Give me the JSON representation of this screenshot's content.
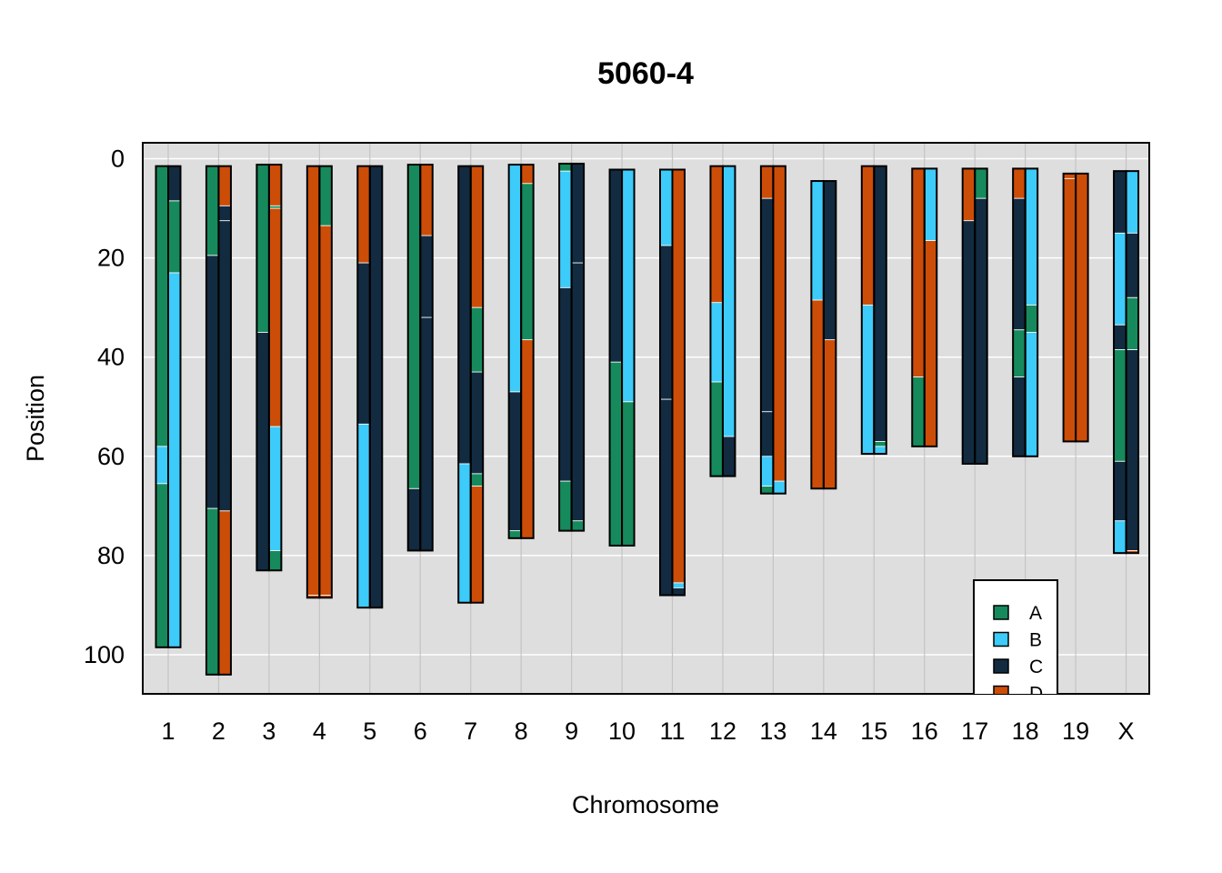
{
  "chart_data": {
    "type": "bar",
    "title": "5060-4",
    "xlabel": "Chromosome",
    "ylabel": "Position",
    "ylim": [
      0,
      108
    ],
    "y_reversed": true,
    "yticks": [
      0,
      20,
      40,
      60,
      80,
      100
    ],
    "grid": true,
    "legend_position": "bottom-right",
    "categories": [
      "1",
      "2",
      "3",
      "4",
      "5",
      "6",
      "7",
      "8",
      "9",
      "10",
      "11",
      "12",
      "13",
      "14",
      "15",
      "16",
      "17",
      "18",
      "19",
      "X"
    ],
    "legend": [
      {
        "key": "A",
        "label": "A",
        "color": "#168A5C"
      },
      {
        "key": "B",
        "label": "B",
        "color": "#3DCBFA"
      },
      {
        "key": "C",
        "label": "C",
        "color": "#122B40"
      },
      {
        "key": "D",
        "label": "D",
        "color": "#CC4D08"
      }
    ],
    "chromosomes": [
      {
        "name": "1",
        "start": 1.5,
        "end": 98.5,
        "left": [
          [
            "A",
            1.5,
            58
          ],
          [
            "B",
            58,
            65.5
          ],
          [
            "A",
            65.5,
            98.5
          ]
        ],
        "right": [
          [
            "C",
            1.5,
            8.5
          ],
          [
            "A",
            8.5,
            23
          ],
          [
            "B",
            23,
            98.5
          ]
        ]
      },
      {
        "name": "2",
        "start": 1.5,
        "end": 104,
        "left": [
          [
            "A",
            1.5,
            19.5
          ],
          [
            "C",
            19.5,
            70.5
          ],
          [
            "A",
            70.5,
            104
          ]
        ],
        "right": [
          [
            "D",
            1.5,
            9.5
          ],
          [
            "C",
            9.5,
            12.5
          ],
          [
            "C",
            12.5,
            71
          ],
          [
            "D",
            71,
            104
          ]
        ]
      },
      {
        "name": "3",
        "start": 1.2,
        "end": 83,
        "left": [
          [
            "A",
            1.2,
            35
          ],
          [
            "C",
            35,
            83
          ]
        ],
        "right": [
          [
            "D",
            1.2,
            9.5
          ],
          [
            "A",
            9.5,
            10
          ],
          [
            "D",
            10,
            54
          ],
          [
            "B",
            54,
            79
          ],
          [
            "A",
            79,
            83
          ]
        ]
      },
      {
        "name": "4",
        "start": 1.5,
        "end": 88.5,
        "left": [
          [
            "D",
            1.5,
            88
          ],
          [
            "D",
            88,
            88.5
          ]
        ],
        "right": [
          [
            "A",
            1.5,
            13.5
          ],
          [
            "D",
            13.5,
            88
          ],
          [
            "D",
            88,
            88.5
          ]
        ]
      },
      {
        "name": "5",
        "start": 1.5,
        "end": 90.5,
        "left": [
          [
            "D",
            1.5,
            21
          ],
          [
            "C",
            21,
            53.5
          ],
          [
            "B",
            53.5,
            90.5
          ]
        ],
        "right": [
          [
            "C",
            1.5,
            90.5
          ]
        ]
      },
      {
        "name": "6",
        "start": 1.2,
        "end": 79,
        "left": [
          [
            "A",
            1.2,
            66.5
          ],
          [
            "C",
            66.5,
            79
          ]
        ],
        "right": [
          [
            "D",
            1.2,
            15.5
          ],
          [
            "C",
            15.5,
            32
          ],
          [
            "C",
            32,
            79
          ]
        ]
      },
      {
        "name": "7",
        "start": 1.5,
        "end": 89.5,
        "left": [
          [
            "C",
            1.5,
            61.5
          ],
          [
            "B",
            61.5,
            89.5
          ]
        ],
        "right": [
          [
            "D",
            1.5,
            30
          ],
          [
            "A",
            30,
            43
          ],
          [
            "C",
            43,
            63.5
          ],
          [
            "A",
            63.5,
            66
          ],
          [
            "D",
            66,
            89.5
          ]
        ]
      },
      {
        "name": "8",
        "start": 1.2,
        "end": 76.5,
        "left": [
          [
            "B",
            1.2,
            47
          ],
          [
            "C",
            47,
            75
          ],
          [
            "A",
            75,
            76.5
          ]
        ],
        "right": [
          [
            "D",
            1.2,
            5
          ],
          [
            "A",
            5,
            36.5
          ],
          [
            "D",
            36.5,
            76.5
          ]
        ]
      },
      {
        "name": "9",
        "start": 1.0,
        "end": 75,
        "left": [
          [
            "A",
            1,
            2.5
          ],
          [
            "B",
            2.5,
            26
          ],
          [
            "C",
            26,
            65
          ],
          [
            "A",
            65,
            75
          ]
        ],
        "right": [
          [
            "C",
            1,
            21
          ],
          [
            "C",
            21,
            73
          ],
          [
            "A",
            73,
            75
          ]
        ]
      },
      {
        "name": "10",
        "start": 2.2,
        "end": 78,
        "left": [
          [
            "C",
            2.2,
            41
          ],
          [
            "A",
            41,
            78
          ]
        ],
        "right": [
          [
            "B",
            2.2,
            49
          ],
          [
            "A",
            49,
            78
          ]
        ]
      },
      {
        "name": "11",
        "start": 2.2,
        "end": 88,
        "left": [
          [
            "B",
            2.2,
            17.5
          ],
          [
            "C",
            17.5,
            48.5
          ],
          [
            "C",
            48.5,
            88
          ]
        ],
        "right": [
          [
            "D",
            2.2,
            85.5
          ],
          [
            "B",
            85.5,
            86.5
          ],
          [
            "C",
            86.5,
            88
          ]
        ]
      },
      {
        "name": "12",
        "start": 1.5,
        "end": 64,
        "left": [
          [
            "D",
            1.5,
            29
          ],
          [
            "B",
            29,
            45
          ],
          [
            "A",
            45,
            64
          ]
        ],
        "right": [
          [
            "B",
            1.5,
            56
          ],
          [
            "C",
            56,
            64
          ]
        ]
      },
      {
        "name": "13",
        "start": 1.5,
        "end": 67.5,
        "left": [
          [
            "D",
            1.5,
            8
          ],
          [
            "C",
            8,
            51
          ],
          [
            "C",
            51,
            60
          ],
          [
            "B",
            60,
            66
          ],
          [
            "A",
            66,
            67.5
          ]
        ],
        "right": [
          [
            "D",
            1.5,
            65
          ],
          [
            "B",
            65,
            67.5
          ]
        ]
      },
      {
        "name": "14",
        "start": 4.5,
        "end": 66.5,
        "left": [
          [
            "B",
            4.5,
            28.5
          ],
          [
            "D",
            28.5,
            66.5
          ]
        ],
        "right": [
          [
            "C",
            4.5,
            36.5
          ],
          [
            "D",
            36.5,
            66.5
          ]
        ]
      },
      {
        "name": "15",
        "start": 1.5,
        "end": 59.5,
        "left": [
          [
            "D",
            1.5,
            29.5
          ],
          [
            "B",
            29.5,
            59.5
          ]
        ],
        "right": [
          [
            "C",
            1.5,
            57
          ],
          [
            "A",
            57,
            58
          ],
          [
            "B",
            58,
            59.5
          ]
        ]
      },
      {
        "name": "16",
        "start": 2.0,
        "end": 58,
        "left": [
          [
            "D",
            2,
            44
          ],
          [
            "A",
            44,
            58
          ]
        ],
        "right": [
          [
            "B",
            2,
            16.5
          ],
          [
            "D",
            16.5,
            58
          ]
        ]
      },
      {
        "name": "17",
        "start": 2.0,
        "end": 61.5,
        "left": [
          [
            "D",
            2,
            12.5
          ],
          [
            "C",
            12.5,
            61.5
          ]
        ],
        "right": [
          [
            "A",
            2,
            8
          ],
          [
            "C",
            8,
            61.5
          ]
        ]
      },
      {
        "name": "18",
        "start": 2.0,
        "end": 60,
        "left": [
          [
            "D",
            2,
            8
          ],
          [
            "C",
            8,
            34.5
          ],
          [
            "A",
            34.5,
            44
          ],
          [
            "C",
            44,
            60
          ]
        ],
        "right": [
          [
            "B",
            2,
            29.5
          ],
          [
            "A",
            29.5,
            35
          ],
          [
            "B",
            35,
            60
          ]
        ]
      },
      {
        "name": "19",
        "start": 3.0,
        "end": 57,
        "left": [
          [
            "D",
            3,
            4
          ],
          [
            "D",
            4,
            57
          ]
        ],
        "right": [
          [
            "D",
            3,
            57
          ]
        ]
      },
      {
        "name": "X",
        "start": 2.5,
        "end": 79.5,
        "left": [
          [
            "C",
            2.5,
            15
          ],
          [
            "B",
            15,
            33.5
          ],
          [
            "C",
            33.5,
            38.5
          ],
          [
            "A",
            38.5,
            61
          ],
          [
            "C",
            61,
            73
          ],
          [
            "B",
            73,
            79.5
          ]
        ],
        "right": [
          [
            "B",
            2.5,
            15
          ],
          [
            "C",
            15,
            28
          ],
          [
            "A",
            28,
            38.5
          ],
          [
            "C",
            38.5,
            79
          ],
          [
            "D",
            79,
            79.5
          ]
        ]
      }
    ]
  }
}
